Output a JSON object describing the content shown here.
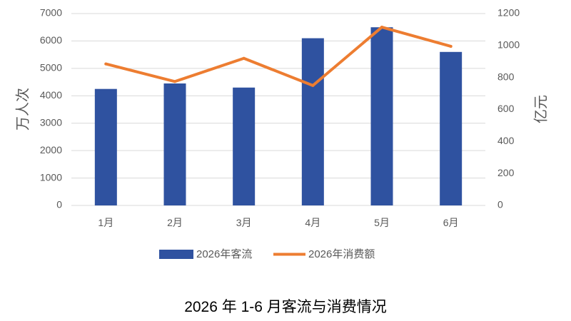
{
  "chart_data": {
    "type": "bar",
    "title": "2026 年 1-6 月客流与消费情况",
    "categories": [
      "1月",
      "2月",
      "3月",
      "4月",
      "5月",
      "6月"
    ],
    "series": [
      {
        "name": "2026年客流",
        "type": "bar",
        "axis": "left",
        "color": "#2f52a0",
        "values": [
          4250,
          4450,
          4300,
          6100,
          6500,
          5600
        ]
      },
      {
        "name": "2026年消费额",
        "type": "line",
        "axis": "right",
        "color": "#ed7d31",
        "values": [
          885,
          775,
          920,
          750,
          1115,
          995
        ]
      }
    ],
    "ylabel": "万人次",
    "ylim": [
      0,
      7000
    ],
    "yticks": [
      "0",
      "1000",
      "2000",
      "3000",
      "4000",
      "5000",
      "6000",
      "7000"
    ],
    "y2label": "亿元",
    "y2lim": [
      0,
      1200
    ],
    "y2ticks": [
      "0",
      "200",
      "400",
      "600",
      "800",
      "1000",
      "1200"
    ],
    "grid": true,
    "legend_position": "bottom"
  }
}
